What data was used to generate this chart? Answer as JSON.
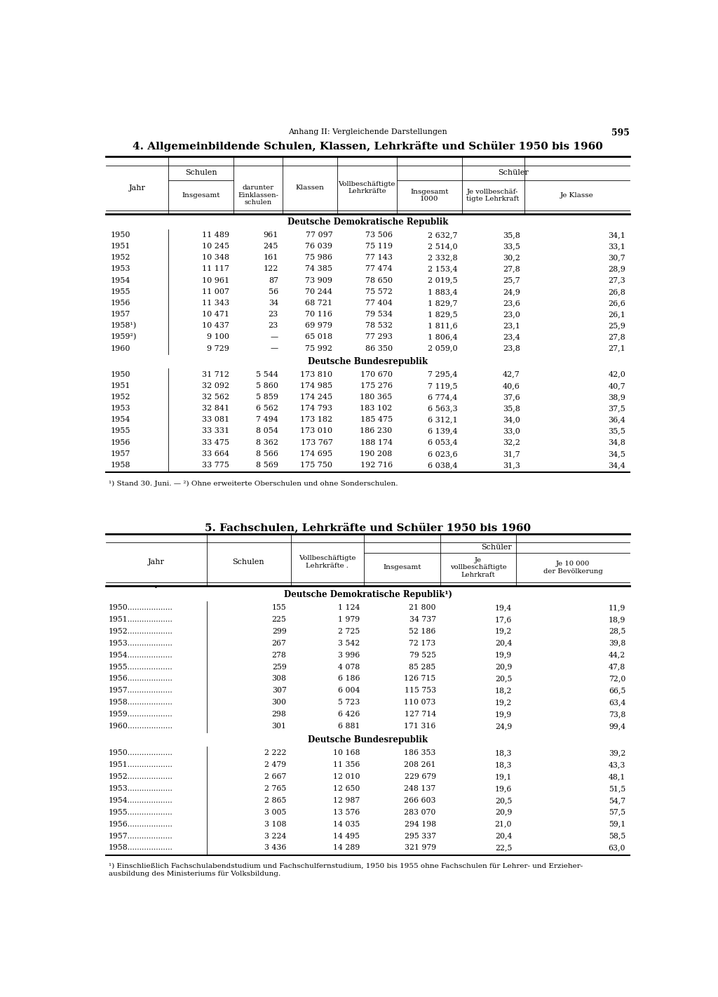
{
  "page_number": "595",
  "header": "Anhang II: Vergleichende Darstellungen",
  "table1_title": "4. Allgemeinbildende Schulen, Klassen, Lehrkräfte und Schüler 1950 bis 1960",
  "table1_ddr_label": "Deutsche Demokratische Republik",
  "table1_ddr_data": [
    [
      "1950",
      "11 489",
      "961",
      "77 097",
      "73 506",
      "2 632,7",
      "35,8",
      "34,1"
    ],
    [
      "1951",
      "10 245",
      "245",
      "76 039",
      "75 119",
      "2 514,0",
      "33,5",
      "33,1"
    ],
    [
      "1952",
      "10 348",
      "161",
      "75 986",
      "77 143",
      "2 332,8",
      "30,2",
      "30,7"
    ],
    [
      "1953",
      "11 117",
      "122",
      "74 385",
      "77 474",
      "2 153,4",
      "27,8",
      "28,9"
    ],
    [
      "1954",
      "10 961",
      "87",
      "73 909",
      "78 650",
      "2 019,5",
      "25,7",
      "27,3"
    ],
    [
      "1955",
      "11 007",
      "56",
      "70 244",
      "75 572",
      "1 883,4",
      "24,9",
      "26,8"
    ],
    [
      "1956",
      "11 343",
      "34",
      "68 721",
      "77 404",
      "1 829,7",
      "23,6",
      "26,6"
    ],
    [
      "1957",
      "10 471",
      "23",
      "70 116",
      "79 534",
      "1 829,5",
      "23,0",
      "26,1"
    ],
    [
      "1958¹)",
      "10 437",
      "23",
      "69 979",
      "78 532",
      "1 811,6",
      "23,1",
      "25,9"
    ],
    [
      "1959²)",
      "9 100",
      "—",
      "65 018",
      "77 293",
      "1 806,4",
      "23,4",
      "27,8"
    ],
    [
      "1960",
      "9 729",
      "—",
      "75 992",
      "86 350",
      "2 059,0",
      "23,8",
      "27,1"
    ]
  ],
  "table1_brd_label": "Deutsche Bundesrepublik",
  "table1_brd_data": [
    [
      "1950",
      "31 712",
      "5 544",
      "173 810",
      "170 670",
      "7 295,4",
      "42,7",
      "42,0"
    ],
    [
      "1951",
      "32 092",
      "5 860",
      "174 985",
      "175 276",
      "7 119,5",
      "40,6",
      "40,7"
    ],
    [
      "1952",
      "32 562",
      "5 859",
      "174 245",
      "180 365",
      "6 774,4",
      "37,6",
      "38,9"
    ],
    [
      "1953",
      "32 841",
      "6 562",
      "174 793",
      "183 102",
      "6 563,3",
      "35,8",
      "37,5"
    ],
    [
      "1954",
      "33 081",
      "7 494",
      "173 182",
      "185 475",
      "6 312,1",
      "34,0",
      "36,4"
    ],
    [
      "1955",
      "33 331",
      "8 054",
      "173 010",
      "186 230",
      "6 139,4",
      "33,0",
      "35,5"
    ],
    [
      "1956",
      "33 475",
      "8 362",
      "173 767",
      "188 174",
      "6 053,4",
      "32,2",
      "34,8"
    ],
    [
      "1957",
      "33 664",
      "8 566",
      "174 695",
      "190 208",
      "6 023,6",
      "31,7",
      "34,5"
    ],
    [
      "1958",
      "33 775",
      "8 569",
      "175 750",
      "192 716",
      "6 038,4",
      "31,3",
      "34,4"
    ]
  ],
  "table1_footnote": "¹) Stand 30. Juni. — ²) Ohne erweiterte Oberschulen und ohne Sonderschulen.",
  "table2_title": "5. Fachschulen, Lehrkräfte und Schüler 1950 bis 1960",
  "table2_schueler_label": "Schüler",
  "table2_ddr_label": "Deutsche Demokratische Republik¹)",
  "table2_ddr_data": [
    [
      "1950...................",
      "155",
      "1 124",
      "21 800",
      "19,4",
      "11,9"
    ],
    [
      "1951...................",
      "225",
      "1 979",
      "34 737",
      "17,6",
      "18,9"
    ],
    [
      "1952...................",
      "299",
      "2 725",
      "52 186",
      "19,2",
      "28,5"
    ],
    [
      "1953...................",
      "267",
      "3 542",
      "72 173",
      "20,4",
      "39,8"
    ],
    [
      "1954...................",
      "278",
      "3 996",
      "79 525",
      "19,9",
      "44,2"
    ],
    [
      "1955...................",
      "259",
      "4 078",
      "85 285",
      "20,9",
      "47,8"
    ],
    [
      "1956...................",
      "308",
      "6 186",
      "126 715",
      "20,5",
      "72,0"
    ],
    [
      "1957...................",
      "307",
      "6 004",
      "115 753",
      "18,2",
      "66,5"
    ],
    [
      "1958...................",
      "300",
      "5 723",
      "110 073",
      "19,2",
      "63,4"
    ],
    [
      "1959...................",
      "298",
      "6 426",
      "127 714",
      "19,9",
      "73,8"
    ],
    [
      "1960...................",
      "301",
      "6 881",
      "171 316",
      "24,9",
      "99,4"
    ]
  ],
  "table2_brd_label": "Deutsche Bundesrepublik",
  "table2_brd_data": [
    [
      "1950...................",
      "2 222",
      "10 168",
      "186 353",
      "18,3",
      "39,2"
    ],
    [
      "1951...................",
      "2 479",
      "11 356",
      "208 261",
      "18,3",
      "43,3"
    ],
    [
      "1952...................",
      "2 667",
      "12 010",
      "229 679",
      "19,1",
      "48,1"
    ],
    [
      "1953...................",
      "2 765",
      "12 650",
      "248 137",
      "19,6",
      "51,5"
    ],
    [
      "1954...................",
      "2 865",
      "12 987",
      "266 603",
      "20,5",
      "54,7"
    ],
    [
      "1955...................",
      "3 005",
      "13 576",
      "283 070",
      "20,9",
      "57,5"
    ],
    [
      "1956...................",
      "3 108",
      "14 035",
      "294 198",
      "21,0",
      "59,1"
    ],
    [
      "1957...................",
      "3 224",
      "14 495",
      "295 337",
      "20,4",
      "58,5"
    ],
    [
      "1958...................",
      "3 436",
      "14 289",
      "321 979",
      "22,5",
      "63,0"
    ]
  ],
  "table2_footnote_line1": "¹) Einschließlich Fachschulabendstudium und Fachschulfernstudium, 1950 bis 1955 ohne Fachschulen für Lehrer- und Erzieher-",
  "table2_footnote_line2": "ausbildung des Ministeriums für Volksbildung."
}
